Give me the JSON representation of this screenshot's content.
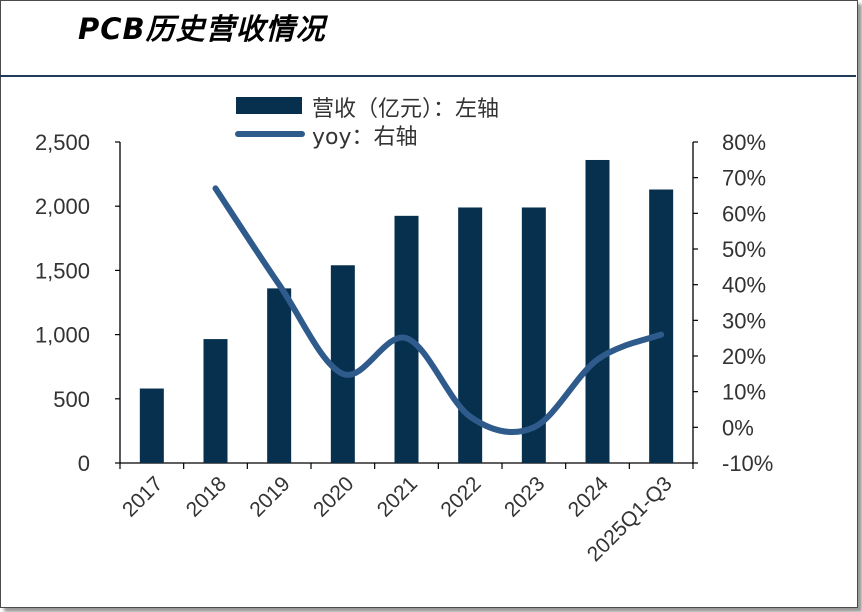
{
  "title": "PCB历史营收情况",
  "colors": {
    "bar": "#06304d",
    "line": "#2f5a8c",
    "rule": "#1f3b5a",
    "text": "#333333"
  },
  "chart_data": {
    "type": "bar",
    "categories": [
      "2017",
      "2018",
      "2019",
      "2020",
      "2021",
      "2022",
      "2023",
      "2024",
      "2025Q1-Q3"
    ],
    "series": [
      {
        "name": "营收（亿元）：左轴",
        "type": "bar",
        "axis": "left",
        "values": [
          580,
          965,
          1360,
          1540,
          1925,
          1990,
          1990,
          2360,
          2130
        ]
      },
      {
        "name": "yoy：右轴",
        "type": "line",
        "axis": "right",
        "values": [
          null,
          67,
          40,
          15,
          25,
          3,
          0,
          19,
          26
        ]
      }
    ],
    "y_left": {
      "min": 0,
      "max": 2500,
      "ticks": [
        "0",
        "500",
        "1,000",
        "1,500",
        "2,000",
        "2,500"
      ]
    },
    "y_right": {
      "min": -10,
      "max": 80,
      "ticks": [
        "-10%",
        "0%",
        "10%",
        "20%",
        "30%",
        "40%",
        "50%",
        "60%",
        "70%",
        "80%"
      ]
    },
    "grid": false,
    "legend_position": "top"
  }
}
